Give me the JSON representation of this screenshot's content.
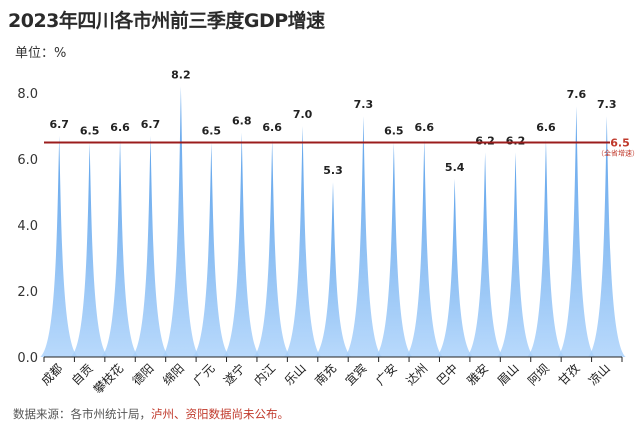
{
  "title": "2023年四川各市州前三季度GDP增速",
  "unit_label": "单位：%",
  "source": {
    "prefix": "数据来源：各市州统计局，",
    "highlight": "泸州、资阳数据尚未公布。"
  },
  "colors": {
    "spike_top": "#3a8ee6",
    "spike_bottom": "#a9d1fb",
    "average_line": "#9b1c1c",
    "axis": "#222222"
  },
  "chart_data": {
    "type": "bar",
    "title": "2023年四川各市州前三季度GDP增速",
    "ylabel": "单位：%",
    "xlabel": "",
    "ylim": [
      0,
      8.5
    ],
    "yticks": [
      0,
      2,
      4,
      6,
      8
    ],
    "ytick_labels": [
      "0.0",
      "2.0",
      "4.0",
      "6.0",
      "8.0"
    ],
    "categories": [
      "成都",
      "自贡",
      "攀枝花",
      "德阳",
      "绵阳",
      "广元",
      "遂宁",
      "内江",
      "乐山",
      "南充",
      "宜宾",
      "广安",
      "达州",
      "巴中",
      "雅安",
      "眉山",
      "阿坝",
      "甘孜",
      "凉山"
    ],
    "values": [
      6.7,
      6.5,
      6.6,
      6.7,
      8.2,
      6.5,
      6.8,
      6.6,
      7.0,
      5.3,
      7.3,
      6.5,
      6.6,
      5.4,
      6.2,
      6.2,
      6.6,
      7.6,
      7.3
    ],
    "value_labels": [
      "6.7",
      "6.5",
      "6.6",
      "6.7",
      "8.2",
      "6.5",
      "6.8",
      "6.6",
      "7.0",
      "5.3",
      "7.3",
      "6.5",
      "6.6",
      "5.4",
      "6.2",
      "6.2",
      "6.6",
      "7.6",
      "7.3"
    ],
    "reference_line": {
      "value": 6.5,
      "label": "6.5",
      "sublabel": "（全省增速）"
    },
    "grid": false,
    "legend": "none"
  }
}
